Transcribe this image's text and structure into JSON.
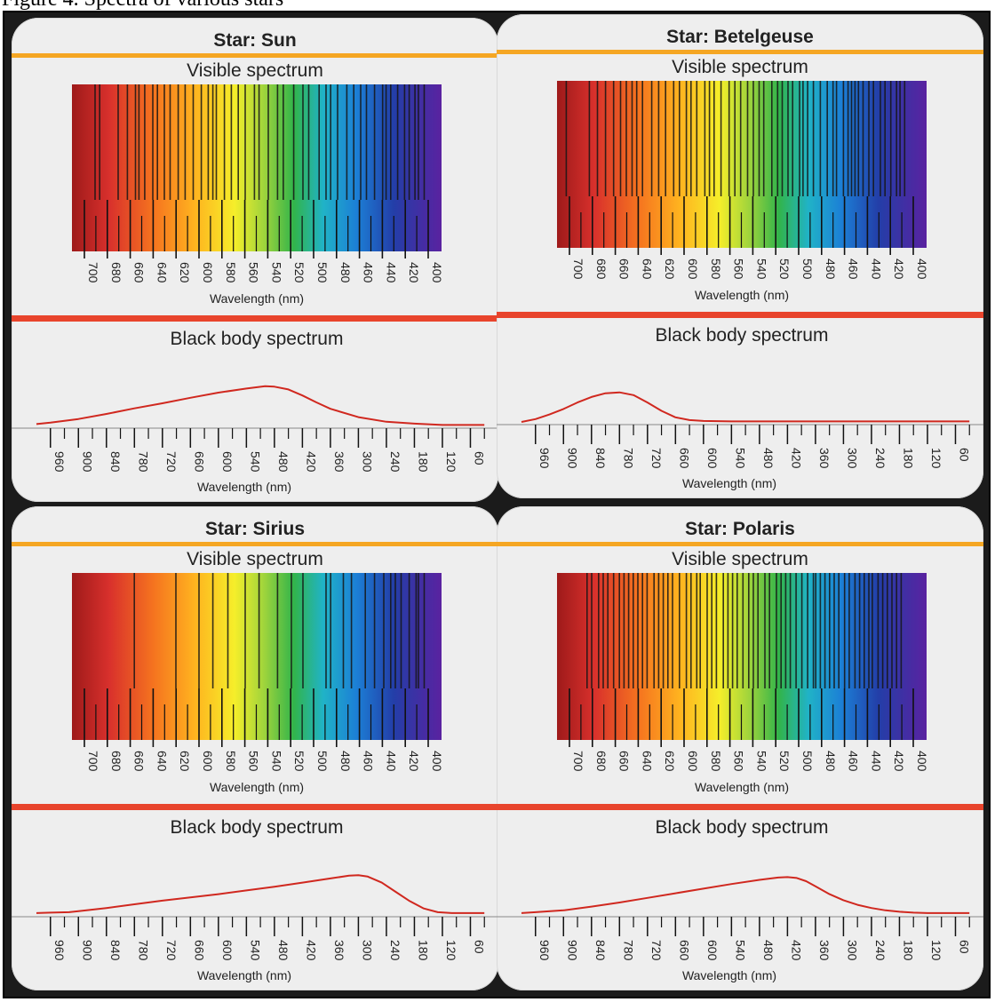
{
  "caption": "Figure 4. Spectra of various stars",
  "cards": [
    {
      "title": "Star: Sun",
      "visible": {
        "heading": "Visible spectrum",
        "ticks": [
          "700",
          "680",
          "660",
          "640",
          "620",
          "600",
          "580",
          "560",
          "540",
          "520",
          "500",
          "480",
          "460",
          "440",
          "420",
          "400"
        ],
        "xlabel": "Wavelength (nm)",
        "lines": [
          690,
          686,
          670,
          662,
          655,
          652,
          647,
          640,
          636,
          630,
          625,
          618,
          612,
          605,
          598,
          592,
          588,
          585,
          578,
          572,
          566,
          560,
          552,
          548,
          540,
          532,
          527,
          518,
          510,
          505,
          496,
          490,
          486,
          480,
          472,
          466,
          460,
          455,
          448,
          441,
          438,
          434,
          428,
          422,
          418,
          413,
          410,
          405
        ]
      },
      "blackbody": {
        "heading": "Black body spectrum",
        "ticks": [
          "960",
          "900",
          "840",
          "780",
          "720",
          "660",
          "600",
          "540",
          "480",
          "420",
          "360",
          "300",
          "240",
          "180",
          "120",
          "60"
        ],
        "xlabel": "Wavelength (nm)",
        "curve": [
          [
            990,
            0.05
          ],
          [
            960,
            0.08
          ],
          [
            900,
            0.16
          ],
          [
            840,
            0.27
          ],
          [
            780,
            0.39
          ],
          [
            720,
            0.5
          ],
          [
            660,
            0.62
          ],
          [
            600,
            0.73
          ],
          [
            540,
            0.82
          ],
          [
            500,
            0.87
          ],
          [
            480,
            0.86
          ],
          [
            450,
            0.8
          ],
          [
            420,
            0.67
          ],
          [
            390,
            0.52
          ],
          [
            360,
            0.38
          ],
          [
            300,
            0.2
          ],
          [
            240,
            0.1
          ],
          [
            180,
            0.06
          ],
          [
            120,
            0.03
          ],
          [
            60,
            0.03
          ],
          [
            30,
            0.03
          ]
        ]
      }
    },
    {
      "title": "Star: Betelgeuse",
      "visible": {
        "heading": "Visible spectrum",
        "ticks": [
          "700",
          "680",
          "660",
          "640",
          "620",
          "600",
          "580",
          "560",
          "540",
          "520",
          "500",
          "480",
          "460",
          "440",
          "420",
          "400"
        ],
        "xlabel": "Wavelength (nm)",
        "lines": [
          702,
          682,
          675,
          668,
          661,
          655,
          650,
          645,
          641,
          636,
          628,
          622,
          616,
          609,
          604,
          598,
          594,
          589,
          582,
          578,
          574,
          568,
          561,
          556,
          551,
          545,
          540,
          535,
          531,
          524,
          519,
          515,
          510,
          506,
          500,
          497,
          493,
          488,
          482,
          476,
          471,
          468,
          462,
          458,
          455,
          452,
          449,
          445,
          440,
          436,
          430,
          426,
          421,
          416,
          413,
          409
        ]
      },
      "blackbody": {
        "heading": "Black body spectrum",
        "ticks": [
          "960",
          "900",
          "840",
          "780",
          "720",
          "660",
          "600",
          "540",
          "480",
          "420",
          "360",
          "300",
          "240",
          "180",
          "120",
          "60"
        ],
        "xlabel": "Wavelength (nm)",
        "curve": [
          [
            990,
            0.02
          ],
          [
            960,
            0.08
          ],
          [
            930,
            0.18
          ],
          [
            900,
            0.3
          ],
          [
            870,
            0.44
          ],
          [
            840,
            0.56
          ],
          [
            810,
            0.64
          ],
          [
            780,
            0.66
          ],
          [
            750,
            0.6
          ],
          [
            720,
            0.44
          ],
          [
            690,
            0.26
          ],
          [
            660,
            0.12
          ],
          [
            630,
            0.06
          ],
          [
            600,
            0.04
          ],
          [
            540,
            0.03
          ],
          [
            480,
            0.03
          ],
          [
            420,
            0.03
          ],
          [
            360,
            0.03
          ],
          [
            300,
            0.03
          ],
          [
            240,
            0.03
          ],
          [
            180,
            0.03
          ],
          [
            120,
            0.03
          ],
          [
            60,
            0.03
          ],
          [
            30,
            0.03
          ]
        ]
      }
    },
    {
      "title": "Star: Sirius",
      "visible": {
        "heading": "Visible spectrum",
        "ticks": [
          "700",
          "680",
          "660",
          "640",
          "620",
          "600",
          "580",
          "560",
          "540",
          "520",
          "500",
          "480",
          "460",
          "440",
          "420",
          "400"
        ],
        "xlabel": "Wavelength (nm)",
        "lines": [
          656,
          620,
          600,
          588,
          575,
          560,
          548,
          532,
          520,
          510,
          490,
          486,
          475,
          468,
          456,
          448,
          440,
          434,
          430,
          425,
          418,
          412,
          410,
          405
        ]
      },
      "blackbody": {
        "heading": "Black body spectrum",
        "ticks": [
          "960",
          "900",
          "840",
          "780",
          "720",
          "660",
          "600",
          "540",
          "480",
          "420",
          "360",
          "300",
          "240",
          "180",
          "120",
          "60"
        ],
        "xlabel": "Wavelength (nm)",
        "curve": [
          [
            990,
            0.04
          ],
          [
            960,
            0.05
          ],
          [
            920,
            0.06
          ],
          [
            900,
            0.08
          ],
          [
            840,
            0.15
          ],
          [
            780,
            0.23
          ],
          [
            720,
            0.31
          ],
          [
            660,
            0.38
          ],
          [
            600,
            0.45
          ],
          [
            540,
            0.53
          ],
          [
            480,
            0.61
          ],
          [
            420,
            0.7
          ],
          [
            360,
            0.79
          ],
          [
            320,
            0.85
          ],
          [
            300,
            0.86
          ],
          [
            280,
            0.83
          ],
          [
            250,
            0.7
          ],
          [
            220,
            0.5
          ],
          [
            190,
            0.3
          ],
          [
            160,
            0.14
          ],
          [
            130,
            0.06
          ],
          [
            100,
            0.04
          ],
          [
            60,
            0.04
          ],
          [
            30,
            0.04
          ]
        ]
      }
    },
    {
      "title": "Star: Polaris",
      "visible": {
        "heading": "Visible spectrum",
        "ticks": [
          "700",
          "680",
          "660",
          "640",
          "620",
          "600",
          "580",
          "560",
          "540",
          "520",
          "500",
          "480",
          "460",
          "440",
          "420",
          "400"
        ],
        "xlabel": "Wavelength (nm)",
        "lines": [
          684,
          680,
          674,
          670,
          666,
          661,
          656,
          652,
          648,
          644,
          640,
          636,
          632,
          626,
          622,
          618,
          614,
          610,
          604,
          598,
          594,
          589,
          586,
          580,
          576,
          572,
          566,
          562,
          558,
          554,
          549,
          544,
          540,
          536,
          530,
          526,
          520,
          516,
          512,
          508,
          503,
          498,
          493,
          488,
          486,
          482,
          478,
          474,
          470,
          466,
          461,
          457,
          452,
          448,
          444,
          440,
          437,
          432,
          428,
          424,
          420,
          416,
          412
        ]
      },
      "blackbody": {
        "heading": "Black body spectrum",
        "ticks": [
          "960",
          "900",
          "840",
          "780",
          "720",
          "660",
          "600",
          "540",
          "480",
          "420",
          "360",
          "300",
          "240",
          "180",
          "120",
          "60"
        ],
        "xlabel": "Wavelength (nm)",
        "curve": [
          [
            990,
            0.04
          ],
          [
            960,
            0.06
          ],
          [
            900,
            0.1
          ],
          [
            840,
            0.18
          ],
          [
            780,
            0.27
          ],
          [
            720,
            0.37
          ],
          [
            660,
            0.47
          ],
          [
            600,
            0.57
          ],
          [
            540,
            0.67
          ],
          [
            480,
            0.76
          ],
          [
            440,
            0.81
          ],
          [
            420,
            0.82
          ],
          [
            400,
            0.8
          ],
          [
            380,
            0.73
          ],
          [
            360,
            0.62
          ],
          [
            330,
            0.45
          ],
          [
            300,
            0.32
          ],
          [
            270,
            0.22
          ],
          [
            240,
            0.15
          ],
          [
            210,
            0.1
          ],
          [
            180,
            0.07
          ],
          [
            150,
            0.05
          ],
          [
            120,
            0.04
          ],
          [
            90,
            0.04
          ],
          [
            60,
            0.04
          ],
          [
            30,
            0.04
          ]
        ]
      }
    }
  ],
  "colors": {
    "card": "#eeeeee",
    "orange_rule": "#f5a623",
    "red_rule": "#e8442c",
    "curve": "#d0281f",
    "text": "#222222",
    "spectrum_left": "#a31a1a",
    "spectrum_right": "#5a22a0"
  }
}
